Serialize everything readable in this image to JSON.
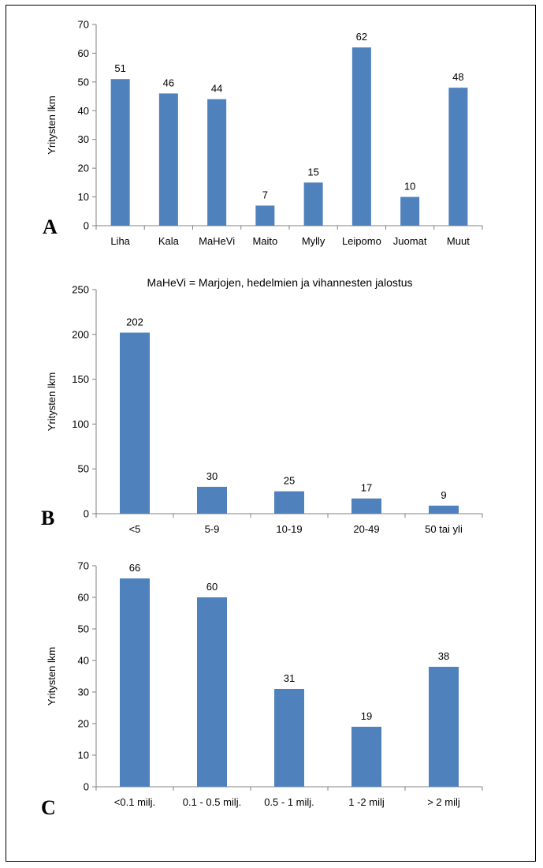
{
  "note": "MaHeVi = Marjojen, hedelmien ja vihannesten jalostus",
  "colors": {
    "bar": "#4f81bd",
    "axis": "#808080"
  },
  "chart_data": [
    {
      "type": "bar",
      "panel": "A",
      "ylabel": "Yritysten lkm",
      "ylim": [
        0,
        70
      ],
      "yticks": [
        0,
        10,
        20,
        30,
        40,
        50,
        60,
        70
      ],
      "categories": [
        "Liha",
        "Kala",
        "MaHeVi",
        "Maito",
        "Mylly",
        "Leipomo",
        "Juomat",
        "Muut"
      ],
      "values": [
        51,
        46,
        44,
        7,
        15,
        62,
        10,
        48
      ]
    },
    {
      "type": "bar",
      "panel": "B",
      "ylabel": "Yritysten lkm",
      "ylim": [
        0,
        250
      ],
      "yticks": [
        0,
        50,
        100,
        150,
        200,
        250
      ],
      "categories": [
        "<5",
        "5-9",
        "10-19",
        "20-49",
        "50 tai yli"
      ],
      "values": [
        202,
        30,
        25,
        17,
        9
      ]
    },
    {
      "type": "bar",
      "panel": "C",
      "ylabel": "Yritysten lkm",
      "ylim": [
        0,
        70
      ],
      "yticks": [
        0,
        10,
        20,
        30,
        40,
        50,
        60,
        70
      ],
      "categories": [
        "<0.1 milj.",
        "0.1 - 0.5 milj.",
        "0.5 - 1 milj.",
        "1 -2 milj",
        "> 2 milj"
      ],
      "values": [
        66,
        60,
        31,
        19,
        38
      ]
    }
  ]
}
